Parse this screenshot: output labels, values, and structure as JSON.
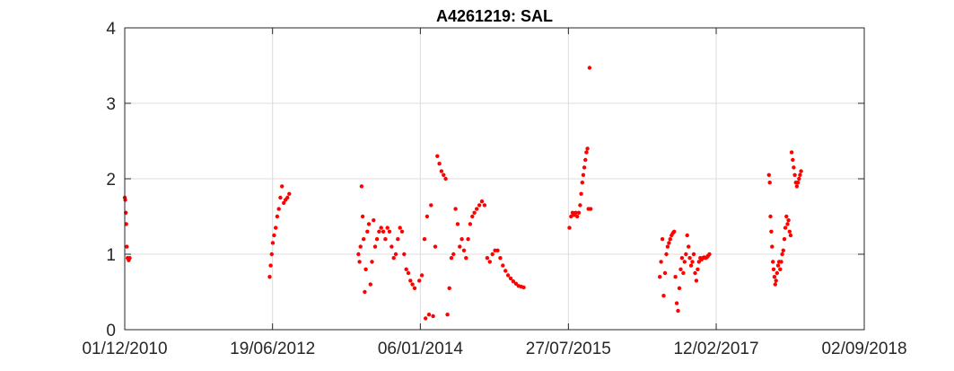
{
  "chart_data": {
    "type": "scatter",
    "title": "A4261219: SAL",
    "xlabel": "",
    "ylabel": "",
    "x_axis": "date",
    "xlim": [
      "2010-12-01",
      "2018-09-02"
    ],
    "ylim": [
      0,
      4
    ],
    "xticks": [
      "2010-12-01",
      "2012-06-19",
      "2014-01-06",
      "2015-07-27",
      "2017-02-12",
      "2018-09-02"
    ],
    "xtick_labels": [
      "01/12/2010",
      "19/06/2012",
      "06/01/2014",
      "27/07/2015",
      "12/02/2017",
      "02/09/2018"
    ],
    "yticks": [
      0,
      1,
      2,
      3,
      4
    ],
    "ytick_labels": [
      "0",
      "1",
      "2",
      "3",
      "4"
    ],
    "grid": true,
    "marker_color": "#ff0000",
    "series": [
      {
        "values": [
          [
            "2010-12-01",
            1.75
          ],
          [
            "2010-12-03",
            1.72
          ],
          [
            "2010-12-05",
            1.55
          ],
          [
            "2010-12-07",
            1.4
          ],
          [
            "2010-12-09",
            1.1
          ],
          [
            "2010-12-12",
            0.95
          ],
          [
            "2010-12-16",
            0.92
          ],
          [
            "2010-12-20",
            0.95
          ],
          [
            "2012-06-08",
            0.7
          ],
          [
            "2012-06-12",
            0.85
          ],
          [
            "2012-06-16",
            1.0
          ],
          [
            "2012-06-20",
            1.15
          ],
          [
            "2012-06-25",
            1.25
          ],
          [
            "2012-07-01",
            1.35
          ],
          [
            "2012-07-07",
            1.5
          ],
          [
            "2012-07-13",
            1.6
          ],
          [
            "2012-07-19",
            1.75
          ],
          [
            "2012-07-25",
            1.9
          ],
          [
            "2012-08-01",
            1.68
          ],
          [
            "2012-08-08",
            1.72
          ],
          [
            "2012-08-15",
            1.75
          ],
          [
            "2012-08-22",
            1.8
          ],
          [
            "2013-05-14",
            1.0
          ],
          [
            "2013-05-18",
            0.9
          ],
          [
            "2013-05-22",
            1.1
          ],
          [
            "2013-05-26",
            1.9
          ],
          [
            "2013-05-30",
            1.5
          ],
          [
            "2013-06-03",
            1.2
          ],
          [
            "2013-06-07",
            0.5
          ],
          [
            "2013-06-11",
            0.8
          ],
          [
            "2013-06-17",
            1.3
          ],
          [
            "2013-06-23",
            1.4
          ],
          [
            "2013-06-29",
            0.6
          ],
          [
            "2013-07-05",
            0.9
          ],
          [
            "2013-07-11",
            1.45
          ],
          [
            "2013-07-17",
            1.1
          ],
          [
            "2013-07-24",
            1.2
          ],
          [
            "2013-08-01",
            1.3
          ],
          [
            "2013-08-09",
            1.35
          ],
          [
            "2013-08-17",
            1.3
          ],
          [
            "2013-08-25",
            1.2
          ],
          [
            "2013-09-02",
            1.35
          ],
          [
            "2013-09-10",
            1.3
          ],
          [
            "2013-09-18",
            1.1
          ],
          [
            "2013-09-26",
            0.95
          ],
          [
            "2013-10-04",
            1.0
          ],
          [
            "2013-10-12",
            1.2
          ],
          [
            "2013-10-20",
            1.35
          ],
          [
            "2013-10-28",
            1.3
          ],
          [
            "2013-11-05",
            1.0
          ],
          [
            "2013-11-13",
            0.8
          ],
          [
            "2013-11-21",
            0.75
          ],
          [
            "2013-11-29",
            0.65
          ],
          [
            "2013-12-07",
            0.6
          ],
          [
            "2013-12-15",
            0.55
          ],
          [
            "2014-01-02",
            0.65
          ],
          [
            "2014-01-12",
            0.72
          ],
          [
            "2014-01-22",
            1.2
          ],
          [
            "2014-01-26",
            0.15
          ],
          [
            "2014-02-01",
            1.5
          ],
          [
            "2014-02-08",
            0.2
          ],
          [
            "2014-02-16",
            1.65
          ],
          [
            "2014-02-24",
            0.18
          ],
          [
            "2014-03-04",
            1.1
          ],
          [
            "2014-03-12",
            2.3
          ],
          [
            "2014-03-20",
            2.2
          ],
          [
            "2014-03-28",
            2.1
          ],
          [
            "2014-04-05",
            2.05
          ],
          [
            "2014-04-13",
            2.0
          ],
          [
            "2014-04-20",
            0.2
          ],
          [
            "2014-04-27",
            0.55
          ],
          [
            "2014-05-05",
            0.95
          ],
          [
            "2014-05-13",
            1.0
          ],
          [
            "2014-05-21",
            1.6
          ],
          [
            "2014-05-29",
            1.4
          ],
          [
            "2014-06-06",
            1.1
          ],
          [
            "2014-06-14",
            1.2
          ],
          [
            "2014-06-22",
            1.05
          ],
          [
            "2014-06-30",
            0.95
          ],
          [
            "2014-07-08",
            1.2
          ],
          [
            "2014-07-16",
            1.4
          ],
          [
            "2014-07-24",
            1.5
          ],
          [
            "2014-08-01",
            1.55
          ],
          [
            "2014-08-10",
            1.6
          ],
          [
            "2014-08-20",
            1.65
          ],
          [
            "2014-08-30",
            1.7
          ],
          [
            "2014-09-09",
            1.65
          ],
          [
            "2014-09-19",
            0.95
          ],
          [
            "2014-09-29",
            0.9
          ],
          [
            "2014-10-09",
            1.0
          ],
          [
            "2014-10-19",
            1.05
          ],
          [
            "2014-10-29",
            1.05
          ],
          [
            "2014-11-08",
            0.95
          ],
          [
            "2014-11-18",
            0.85
          ],
          [
            "2014-11-28",
            0.78
          ],
          [
            "2014-12-08",
            0.72
          ],
          [
            "2014-12-18",
            0.68
          ],
          [
            "2014-12-28",
            0.64
          ],
          [
            "2015-01-07",
            0.61
          ],
          [
            "2015-01-17",
            0.58
          ],
          [
            "2015-01-27",
            0.57
          ],
          [
            "2015-02-06",
            0.56
          ],
          [
            "2015-07-31",
            1.35
          ],
          [
            "2015-08-06",
            1.5
          ],
          [
            "2015-08-12",
            1.55
          ],
          [
            "2015-08-18",
            1.52
          ],
          [
            "2015-08-24",
            1.55
          ],
          [
            "2015-08-30",
            1.5
          ],
          [
            "2015-09-05",
            1.55
          ],
          [
            "2015-09-10",
            1.65
          ],
          [
            "2015-09-14",
            1.8
          ],
          [
            "2015-09-18",
            1.95
          ],
          [
            "2015-09-22",
            2.05
          ],
          [
            "2015-09-26",
            2.15
          ],
          [
            "2015-09-30",
            2.25
          ],
          [
            "2015-10-04",
            2.35
          ],
          [
            "2015-10-08",
            2.4
          ],
          [
            "2015-10-12",
            1.6
          ],
          [
            "2015-10-16",
            3.47
          ],
          [
            "2015-10-20",
            1.6
          ],
          [
            "2016-07-11",
            0.7
          ],
          [
            "2016-07-16",
            0.9
          ],
          [
            "2016-07-21",
            1.2
          ],
          [
            "2016-07-26",
            0.45
          ],
          [
            "2016-07-31",
            0.75
          ],
          [
            "2016-08-05",
            1.0
          ],
          [
            "2016-08-10",
            1.1
          ],
          [
            "2016-08-15",
            1.15
          ],
          [
            "2016-08-20",
            1.2
          ],
          [
            "2016-08-25",
            1.25
          ],
          [
            "2016-08-30",
            1.28
          ],
          [
            "2016-09-04",
            1.3
          ],
          [
            "2016-09-09",
            0.7
          ],
          [
            "2016-09-14",
            0.35
          ],
          [
            "2016-09-19",
            0.25
          ],
          [
            "2016-09-24",
            0.55
          ],
          [
            "2016-09-29",
            0.8
          ],
          [
            "2016-10-04",
            0.95
          ],
          [
            "2016-10-09",
            0.75
          ],
          [
            "2016-10-14",
            0.9
          ],
          [
            "2016-10-19",
            1.0
          ],
          [
            "2016-10-24",
            1.25
          ],
          [
            "2016-10-29",
            1.1
          ],
          [
            "2016-11-03",
            0.95
          ],
          [
            "2016-11-08",
            0.85
          ],
          [
            "2016-11-13",
            0.9
          ],
          [
            "2016-11-18",
            1.0
          ],
          [
            "2016-11-23",
            0.75
          ],
          [
            "2016-11-28",
            0.65
          ],
          [
            "2016-12-03",
            0.8
          ],
          [
            "2016-12-08",
            0.9
          ],
          [
            "2016-12-13",
            0.95
          ],
          [
            "2016-12-18",
            0.93
          ],
          [
            "2016-12-23",
            0.95
          ],
          [
            "2016-12-28",
            0.96
          ],
          [
            "2017-01-02",
            0.95
          ],
          [
            "2017-01-07",
            0.96
          ],
          [
            "2017-01-12",
            0.98
          ],
          [
            "2017-01-17",
            1.0
          ],
          [
            "2017-09-02",
            2.05
          ],
          [
            "2017-09-05",
            1.95
          ],
          [
            "2017-09-08",
            1.5
          ],
          [
            "2017-09-11",
            1.3
          ],
          [
            "2017-09-14",
            1.1
          ],
          [
            "2017-09-17",
            0.9
          ],
          [
            "2017-09-20",
            0.8
          ],
          [
            "2017-09-23",
            0.7
          ],
          [
            "2017-09-26",
            0.6
          ],
          [
            "2017-09-29",
            0.65
          ],
          [
            "2017-10-03",
            0.75
          ],
          [
            "2017-10-07",
            0.85
          ],
          [
            "2017-10-11",
            0.9
          ],
          [
            "2017-10-15",
            0.8
          ],
          [
            "2017-10-19",
            0.9
          ],
          [
            "2017-10-23",
            1.0
          ],
          [
            "2017-10-27",
            1.05
          ],
          [
            "2017-10-31",
            1.2
          ],
          [
            "2017-11-04",
            1.35
          ],
          [
            "2017-11-08",
            1.5
          ],
          [
            "2017-11-12",
            1.4
          ],
          [
            "2017-11-16",
            1.45
          ],
          [
            "2017-11-20",
            1.3
          ],
          [
            "2017-11-24",
            1.25
          ],
          [
            "2017-11-28",
            2.35
          ],
          [
            "2017-12-02",
            2.25
          ],
          [
            "2017-12-06",
            2.15
          ],
          [
            "2017-12-10",
            2.05
          ],
          [
            "2017-12-14",
            1.95
          ],
          [
            "2017-12-18",
            1.9
          ],
          [
            "2017-12-22",
            1.95
          ],
          [
            "2017-12-26",
            2.0
          ],
          [
            "2017-12-30",
            2.05
          ],
          [
            "2018-01-03",
            2.1
          ]
        ]
      }
    ]
  }
}
